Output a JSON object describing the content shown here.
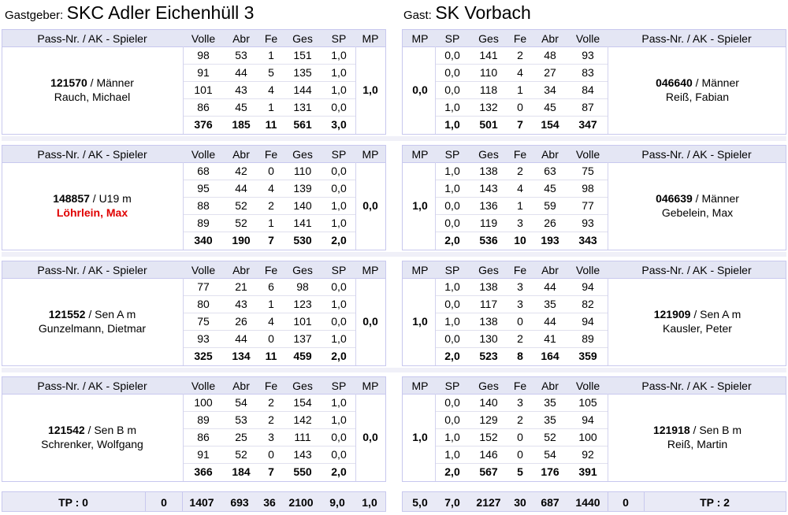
{
  "header": {
    "host_label": "Gastgeber:",
    "host_name": "SKC Adler Eichenhüll 3",
    "guest_label": "Gast:",
    "guest_name": "SK Vorbach"
  },
  "columns": {
    "player": "Pass-Nr. / AK - Spieler",
    "volle": "Volle",
    "abr": "Abr",
    "fe": "Fe",
    "ges": "Ges",
    "sp": "SP",
    "mp": "MP"
  },
  "matches": [
    {
      "home": {
        "pass": "121570",
        "ak": " / Männer",
        "name": "Rauch, Michael",
        "name_red": false,
        "rows": [
          [
            "98",
            "53",
            "1",
            "151",
            "1,0"
          ],
          [
            "91",
            "44",
            "5",
            "135",
            "1,0"
          ],
          [
            "101",
            "43",
            "4",
            "144",
            "1,0"
          ],
          [
            "86",
            "45",
            "1",
            "131",
            "0,0"
          ]
        ],
        "sum": [
          "376",
          "185",
          "11",
          "561",
          "3,0"
        ],
        "mp": "1,0"
      },
      "guest": {
        "pass": "046640",
        "ak": " / Männer",
        "name": "Reiß, Fabian",
        "name_red": false,
        "rows": [
          [
            "0,0",
            "141",
            "2",
            "48",
            "93"
          ],
          [
            "0,0",
            "110",
            "4",
            "27",
            "83"
          ],
          [
            "0,0",
            "118",
            "1",
            "34",
            "84"
          ],
          [
            "1,0",
            "132",
            "0",
            "45",
            "87"
          ]
        ],
        "sum": [
          "1,0",
          "501",
          "7",
          "154",
          "347"
        ],
        "mp": "0,0"
      }
    },
    {
      "home": {
        "pass": "148857",
        "ak": " / U19 m",
        "name": "Löhrlein, Max",
        "name_red": true,
        "rows": [
          [
            "68",
            "42",
            "0",
            "110",
            "0,0"
          ],
          [
            "95",
            "44",
            "4",
            "139",
            "0,0"
          ],
          [
            "88",
            "52",
            "2",
            "140",
            "1,0"
          ],
          [
            "89",
            "52",
            "1",
            "141",
            "1,0"
          ]
        ],
        "sum": [
          "340",
          "190",
          "7",
          "530",
          "2,0"
        ],
        "mp": "0,0"
      },
      "guest": {
        "pass": "046639",
        "ak": " / Männer",
        "name": "Gebelein, Max",
        "name_red": false,
        "rows": [
          [
            "1,0",
            "138",
            "2",
            "63",
            "75"
          ],
          [
            "1,0",
            "143",
            "4",
            "45",
            "98"
          ],
          [
            "0,0",
            "136",
            "1",
            "59",
            "77"
          ],
          [
            "0,0",
            "119",
            "3",
            "26",
            "93"
          ]
        ],
        "sum": [
          "2,0",
          "536",
          "10",
          "193",
          "343"
        ],
        "mp": "1,0"
      }
    },
    {
      "home": {
        "pass": "121552",
        "ak": " / Sen A m",
        "name": "Gunzelmann, Dietmar",
        "name_red": false,
        "rows": [
          [
            "77",
            "21",
            "6",
            "98",
            "0,0"
          ],
          [
            "80",
            "43",
            "1",
            "123",
            "1,0"
          ],
          [
            "75",
            "26",
            "4",
            "101",
            "0,0"
          ],
          [
            "93",
            "44",
            "0",
            "137",
            "1,0"
          ]
        ],
        "sum": [
          "325",
          "134",
          "11",
          "459",
          "2,0"
        ],
        "mp": "0,0"
      },
      "guest": {
        "pass": "121909",
        "ak": " / Sen A m",
        "name": "Kausler, Peter",
        "name_red": false,
        "rows": [
          [
            "1,0",
            "138",
            "3",
            "44",
            "94"
          ],
          [
            "0,0",
            "117",
            "3",
            "35",
            "82"
          ],
          [
            "1,0",
            "138",
            "0",
            "44",
            "94"
          ],
          [
            "0,0",
            "130",
            "2",
            "41",
            "89"
          ]
        ],
        "sum": [
          "2,0",
          "523",
          "8",
          "164",
          "359"
        ],
        "mp": "1,0"
      }
    },
    {
      "home": {
        "pass": "121542",
        "ak": " / Sen B m",
        "name": "Schrenker, Wolfgang",
        "name_red": false,
        "rows": [
          [
            "100",
            "54",
            "2",
            "154",
            "1,0"
          ],
          [
            "89",
            "53",
            "2",
            "142",
            "1,0"
          ],
          [
            "86",
            "25",
            "3",
            "111",
            "0,0"
          ],
          [
            "91",
            "52",
            "0",
            "143",
            "0,0"
          ]
        ],
        "sum": [
          "366",
          "184",
          "7",
          "550",
          "2,0"
        ],
        "mp": "0,0"
      },
      "guest": {
        "pass": "121918",
        "ak": " / Sen B m",
        "name": "Reiß, Martin",
        "name_red": false,
        "rows": [
          [
            "0,0",
            "140",
            "3",
            "35",
            "105"
          ],
          [
            "0,0",
            "129",
            "2",
            "35",
            "94"
          ],
          [
            "1,0",
            "152",
            "0",
            "52",
            "100"
          ],
          [
            "1,0",
            "146",
            "0",
            "54",
            "92"
          ]
        ],
        "sum": [
          "2,0",
          "567",
          "5",
          "176",
          "391"
        ],
        "mp": "1,0"
      }
    }
  ],
  "totals": {
    "home": {
      "tp": "TP : 0",
      "extra": "0",
      "volle": "1407",
      "abr": "693",
      "fe": "36",
      "ges": "2100",
      "sp": "9,0",
      "mp": "1,0"
    },
    "guest": {
      "mp": "5,0",
      "sp": "7,0",
      "ges": "2127",
      "fe": "30",
      "abr": "687",
      "volle": "1440",
      "extra": "0",
      "tp": "TP : 2"
    }
  }
}
